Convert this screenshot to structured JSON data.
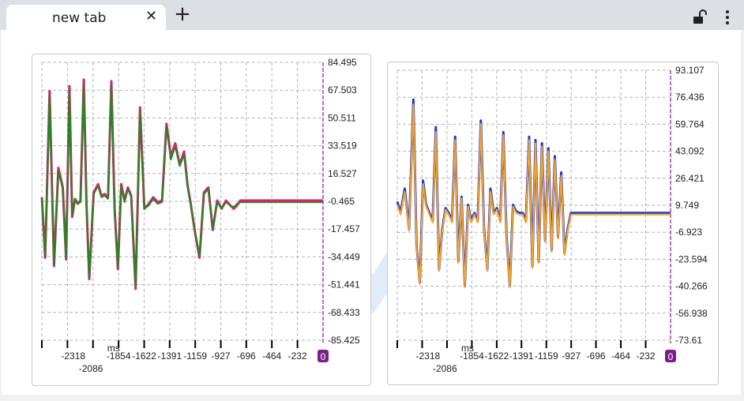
{
  "browser": {
    "tab_title": "new tab",
    "close_icon": "close-icon",
    "new_tab_icon": "plus-icon",
    "lock_icon": "unlocked-padlock-icon",
    "menu_icon": "vertical-dots-menu-icon"
  },
  "chart_data": [
    {
      "type": "line",
      "xlabel": "ms",
      "xlim": [
        -2550,
        0
      ],
      "ylim": [
        -85.425,
        84.495
      ],
      "grid": true,
      "x_ticks": [
        "-2318",
        "-2086",
        "-1854",
        "-1622",
        "-1391",
        "-1159",
        "-927",
        "-696",
        "-464",
        "-232"
      ],
      "cursor_label": "0",
      "y_ticks": [
        "84.495",
        "67.503",
        "50.511",
        "33.519",
        "16.527",
        "-0.465",
        "-17.457",
        "-34.449",
        "-51.441",
        "-68.433",
        "-85.425"
      ],
      "colors": [
        "#e8197d",
        "#1e8a1e"
      ],
      "x": [
        -2550,
        -2520,
        -2480,
        -2440,
        -2400,
        -2360,
        -2330,
        -2300,
        -2275,
        -2250,
        -2225,
        -2200,
        -2170,
        -2145,
        -2120,
        -2080,
        -2040,
        -2010,
        -1980,
        -1950,
        -1920,
        -1890,
        -1860,
        -1830,
        -1800,
        -1770,
        -1740,
        -1700,
        -1660,
        -1620,
        -1580,
        -1540,
        -1500,
        -1460,
        -1420,
        -1380,
        -1340,
        -1300,
        -1260,
        -1230,
        -1200,
        -1160,
        -1120,
        -1080,
        -1040,
        -1000,
        -960,
        -920,
        -880,
        -840,
        -810,
        -780,
        -750,
        -720,
        -690,
        -660,
        -630,
        -600,
        -570,
        -540,
        -510,
        -480,
        -450,
        -420,
        -390,
        -360,
        -330,
        -300,
        -270,
        -240,
        -210,
        -180,
        -150,
        -120,
        -90,
        -60,
        -30,
        0
      ],
      "series": [
        {
          "values": [
            2,
            -35,
            67,
            -40,
            20,
            8,
            -36,
            70,
            -10,
            1,
            -2,
            0,
            74,
            -2,
            -48,
            5,
            10,
            3,
            4,
            2,
            73,
            -5,
            -42,
            10,
            0,
            8,
            3,
            -54,
            57,
            -5,
            -2,
            2,
            -1,
            0,
            47,
            27,
            35,
            22,
            30,
            10,
            -2,
            -20,
            -35,
            5,
            8,
            -18,
            0,
            -5,
            0,
            -3,
            -5,
            -3,
            0,
            0,
            0,
            0,
            0,
            0,
            0,
            0,
            0,
            0,
            0,
            0,
            0,
            0,
            0,
            0,
            0,
            0,
            0,
            0,
            0,
            0,
            0,
            0,
            0,
            0
          ]
        },
        {
          "values": [
            1,
            -34,
            65,
            -39,
            18,
            7,
            -35,
            68,
            -9,
            1,
            -2,
            -1,
            72,
            -2,
            -47,
            4,
            9,
            2,
            3,
            1,
            71,
            -5,
            -41,
            9,
            -1,
            7,
            2,
            -53,
            55,
            -5,
            -3,
            1,
            -2,
            -1,
            45,
            25,
            33,
            21,
            28,
            9,
            -3,
            -19,
            -34,
            4,
            7,
            -17,
            -1,
            -5,
            -1,
            -3,
            -4,
            -2,
            -1,
            -1,
            -1,
            -1,
            -1,
            -1,
            -1,
            -1,
            -1,
            -1,
            -1,
            -1,
            -1,
            -1,
            -1,
            -1,
            -1,
            -1,
            -1,
            -1,
            -1,
            -1,
            -1,
            -1,
            -1,
            -1
          ]
        }
      ]
    },
    {
      "type": "line",
      "xlabel": "ms",
      "xlim": [
        -2550,
        0
      ],
      "ylim": [
        -73.61,
        93.107
      ],
      "grid": true,
      "x_ticks": [
        "-2318",
        "-2086",
        "-1854",
        "-1622",
        "-1391",
        "-1159",
        "-927",
        "-696",
        "-464",
        "-232"
      ],
      "cursor_label": "0",
      "y_ticks": [
        "93.107",
        "76.436",
        "59.764",
        "43.092",
        "26.421",
        "9.749",
        "-6.923",
        "-23.594",
        "-40.266",
        "-56.938",
        "-73.61"
      ],
      "colors": [
        "#1f3bd6",
        "#f5a623"
      ],
      "x": [
        -2550,
        -2520,
        -2480,
        -2440,
        -2400,
        -2370,
        -2340,
        -2310,
        -2280,
        -2250,
        -2220,
        -2190,
        -2160,
        -2130,
        -2100,
        -2070,
        -2040,
        -2010,
        -1980,
        -1950,
        -1920,
        -1890,
        -1860,
        -1830,
        -1800,
        -1770,
        -1740,
        -1710,
        -1680,
        -1650,
        -1620,
        -1590,
        -1560,
        -1530,
        -1500,
        -1470,
        -1440,
        -1410,
        -1380,
        -1350,
        -1320,
        -1290,
        -1260,
        -1230,
        -1200,
        -1170,
        -1140,
        -1110,
        -1080,
        -1050,
        -1020,
        -990,
        -960,
        -930,
        -900,
        -870,
        -840,
        -810,
        -780,
        -750,
        -720,
        -690,
        -660,
        -630,
        -600,
        -570,
        -540,
        -510,
        -480,
        -450,
        -420,
        -390,
        -360,
        -330,
        -300,
        -270,
        -240,
        -210,
        -180,
        -150,
        -120,
        -90,
        -60,
        -30,
        0
      ],
      "series": [
        {
          "values": [
            12,
            5,
            20,
            -5,
            75,
            -15,
            -38,
            25,
            10,
            5,
            0,
            58,
            -30,
            -5,
            8,
            5,
            0,
            52,
            -25,
            15,
            -40,
            10,
            0,
            5,
            0,
            62,
            -5,
            -30,
            20,
            5,
            8,
            0,
            55,
            -10,
            -40,
            10,
            6,
            5,
            5,
            0,
            52,
            -28,
            50,
            -25,
            48,
            -12,
            45,
            -18,
            40,
            -10,
            30,
            -20,
            -5,
            5,
            5,
            5,
            5,
            5,
            5,
            5,
            5,
            5,
            5,
            5,
            5,
            5,
            5,
            5,
            5,
            5,
            5,
            5,
            5,
            5,
            5,
            5,
            5,
            5,
            5,
            5,
            5,
            5,
            5,
            5,
            5
          ]
        },
        {
          "values": [
            10,
            4,
            18,
            -6,
            72,
            -16,
            -39,
            23,
            9,
            4,
            -1,
            55,
            -31,
            -6,
            7,
            4,
            -1,
            50,
            -26,
            14,
            -41,
            9,
            -1,
            4,
            -1,
            60,
            -6,
            -31,
            18,
            4,
            7,
            -1,
            53,
            -11,
            -41,
            9,
            5,
            4,
            4,
            -1,
            50,
            -29,
            48,
            -26,
            46,
            -13,
            43,
            -19,
            38,
            -11,
            28,
            -21,
            -6,
            4,
            4,
            4,
            4,
            4,
            4,
            4,
            4,
            4,
            4,
            4,
            4,
            4,
            4,
            4,
            4,
            4,
            4,
            4,
            4,
            4,
            4,
            4,
            4,
            4,
            4,
            4,
            4,
            4,
            4,
            4,
            4
          ]
        }
      ]
    }
  ]
}
